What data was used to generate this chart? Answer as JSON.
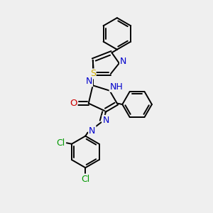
{
  "background_color": "#efefef",
  "line_color": "#000000",
  "bond_width": 1.4,
  "atom_colors": {
    "N": "#0000cc",
    "O": "#cc0000",
    "S": "#ccaa00",
    "Cl": "#009900",
    "H": "#007777",
    "C": "#000000"
  },
  "font_size": 8.5
}
